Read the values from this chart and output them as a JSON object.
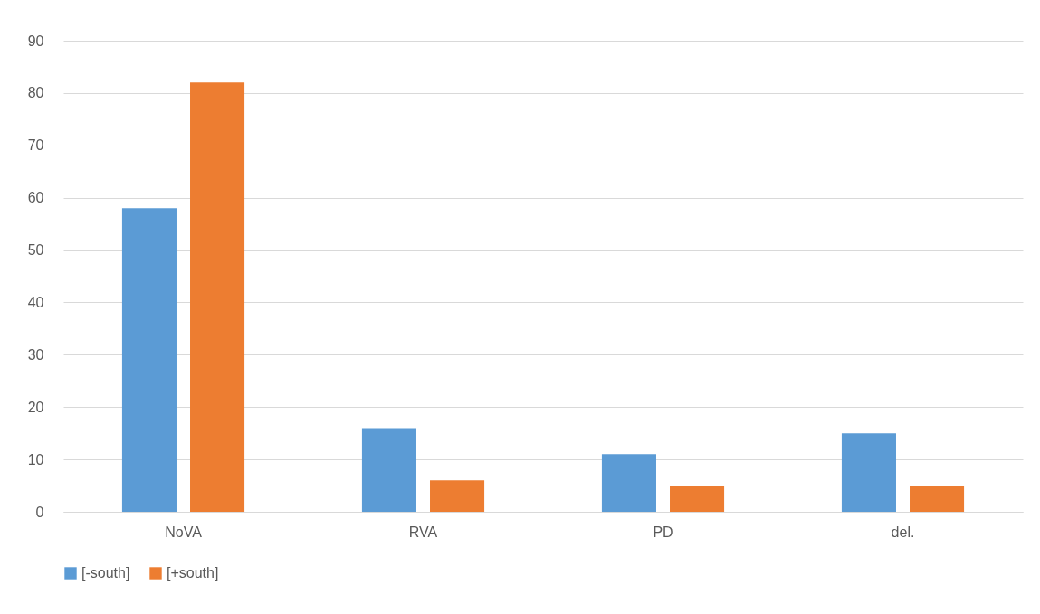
{
  "chart_data": {
    "type": "bar",
    "categories": [
      "NoVA",
      "RVA",
      "PD",
      "del."
    ],
    "series": [
      {
        "name": "[-south]",
        "color": "#5b9bd5",
        "values": [
          58,
          16,
          11,
          15
        ]
      },
      {
        "name": "[+south]",
        "color": "#ed7d31",
        "values": [
          82,
          6,
          5,
          5
        ]
      }
    ],
    "ylim": [
      0,
      90
    ],
    "yticks": [
      0,
      10,
      20,
      30,
      40,
      50,
      60,
      70,
      80,
      90
    ],
    "grid": "y",
    "legend": "bottom"
  }
}
